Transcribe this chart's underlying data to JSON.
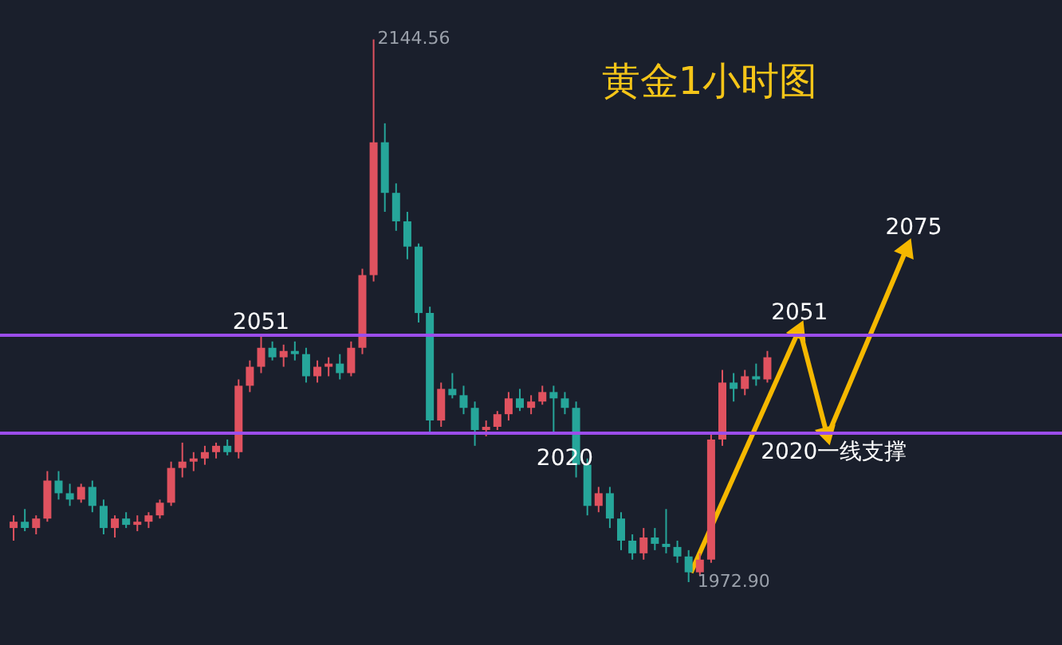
{
  "chart_data": {
    "type": "candlestick",
    "title": "黄金1小时图",
    "categories": [
      null,
      null,
      null,
      null,
      null,
      null,
      null,
      null,
      null,
      null,
      null,
      null,
      null,
      null,
      null,
      null,
      null,
      null,
      null,
      null,
      null,
      null,
      null,
      null,
      null,
      null,
      null,
      null,
      null,
      null,
      null,
      null,
      null,
      null,
      null,
      null,
      null,
      null,
      null,
      null,
      null,
      null,
      null,
      null,
      null,
      null,
      null,
      null,
      null,
      null,
      null,
      null,
      null,
      null,
      null,
      null,
      null,
      null,
      null,
      null,
      null,
      null,
      null,
      null,
      null,
      null,
      null,
      null
    ],
    "ohlc": [
      [
        1990,
        1994,
        1986,
        1992
      ],
      [
        1992,
        1996,
        1989,
        1990
      ],
      [
        1990,
        1994,
        1988,
        1993
      ],
      [
        1993,
        2008,
        1992,
        2005
      ],
      [
        2005,
        2008,
        1999,
        2001
      ],
      [
        2001,
        2004,
        1997,
        1999
      ],
      [
        1999,
        2004,
        1998,
        2003
      ],
      [
        2003,
        2005,
        1995,
        1997
      ],
      [
        1997,
        1999,
        1988,
        1990
      ],
      [
        1990,
        1994,
        1987,
        1993
      ],
      [
        1993,
        1995,
        1990,
        1991
      ],
      [
        1991,
        1994,
        1989,
        1992
      ],
      [
        1992,
        1995,
        1990,
        1994
      ],
      [
        1994,
        1999,
        1993,
        1998
      ],
      [
        1998,
        2011,
        1997,
        2009
      ],
      [
        2009,
        2017,
        2006,
        2011
      ],
      [
        2011,
        2014,
        2008,
        2012
      ],
      [
        2012,
        2016,
        2010,
        2014
      ],
      [
        2014,
        2017,
        2012,
        2016
      ],
      [
        2016,
        2018,
        2013,
        2014
      ],
      [
        2014,
        2037,
        2012,
        2035
      ],
      [
        2035,
        2043,
        2033,
        2041
      ],
      [
        2041,
        2051,
        2039,
        2047
      ],
      [
        2047,
        2049,
        2043,
        2044
      ],
      [
        2044,
        2048,
        2041,
        2046
      ],
      [
        2046,
        2049,
        2043,
        2045
      ],
      [
        2045,
        2047,
        2036,
        2038
      ],
      [
        2038,
        2043,
        2036,
        2041
      ],
      [
        2041,
        2044,
        2038,
        2042
      ],
      [
        2042,
        2045,
        2037,
        2039
      ],
      [
        2039,
        2049,
        2038,
        2047
      ],
      [
        2047,
        2072,
        2045,
        2070
      ],
      [
        2070,
        2144.56,
        2068,
        2112
      ],
      [
        2112,
        2118,
        2090,
        2096
      ],
      [
        2096,
        2099,
        2084,
        2087
      ],
      [
        2087,
        2090,
        2075,
        2079
      ],
      [
        2079,
        2080,
        2055,
        2058
      ],
      [
        2058,
        2060,
        2020,
        2024
      ],
      [
        2024,
        2036,
        2022,
        2034
      ],
      [
        2034,
        2039,
        2031,
        2032
      ],
      [
        2032,
        2035,
        2026,
        2028
      ],
      [
        2028,
        2030,
        2016,
        2021
      ],
      [
        2021,
        2024,
        2019,
        2022
      ],
      [
        2022,
        2027,
        2021,
        2026
      ],
      [
        2026,
        2033,
        2024,
        2031
      ],
      [
        2031,
        2034,
        2027,
        2028
      ],
      [
        2028,
        2032,
        2026,
        2030
      ],
      [
        2030,
        2035,
        2029,
        2033
      ],
      [
        2033,
        2035,
        2020,
        2031
      ],
      [
        2031,
        2033,
        2026,
        2028
      ],
      [
        2028,
        2030,
        2006,
        2010
      ],
      [
        2010,
        2012,
        1994,
        1997
      ],
      [
        1997,
        2003,
        1995,
        2001
      ],
      [
        2001,
        2003,
        1990,
        1993
      ],
      [
        1993,
        1995,
        1983,
        1986
      ],
      [
        1986,
        1988,
        1980,
        1982
      ],
      [
        1982,
        1990,
        1980,
        1987
      ],
      [
        1987,
        1990,
        1983,
        1985
      ],
      [
        1985,
        1996,
        1982,
        1984
      ],
      [
        1984,
        1986,
        1979,
        1981
      ],
      [
        1981,
        1983,
        1972.9,
        1976
      ],
      [
        1976,
        1982,
        1975,
        1980
      ],
      [
        1980,
        2020,
        1979,
        2018
      ],
      [
        2018,
        2040,
        2016,
        2036
      ],
      [
        2036,
        2039,
        2030,
        2034
      ],
      [
        2034,
        2040,
        2032,
        2038
      ],
      [
        2038,
        2042,
        2035,
        2037
      ],
      [
        2037,
        2046,
        2036,
        2044
      ]
    ],
    "ylim": [
      1953,
      2157
    ],
    "ref_lines": [
      {
        "axis": "y",
        "value": 2051,
        "label": "2051",
        "color": "#9b4dea"
      },
      {
        "axis": "y",
        "value": 2020,
        "label": "2020",
        "color": "#9b4dea"
      }
    ],
    "annotations": [
      "2144.56",
      "1972.90",
      "2051",
      "2020一线支撑",
      "2075"
    ]
  }
}
